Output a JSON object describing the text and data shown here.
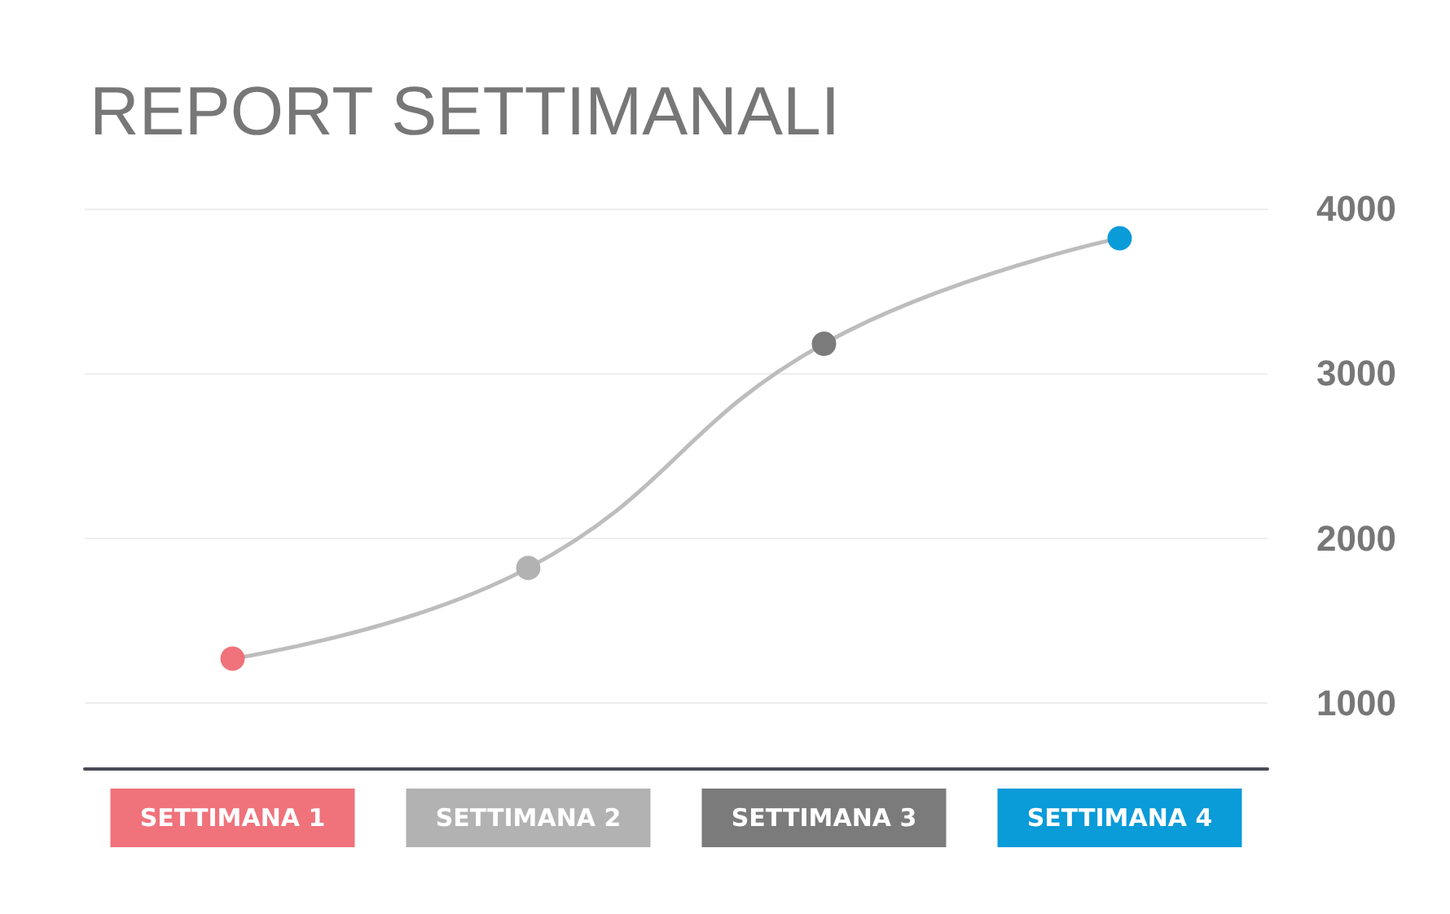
{
  "chart_data": {
    "type": "line",
    "title": "REPORT SETTIMANALI",
    "categories": [
      "SETTIMANA 1",
      "SETTIMANA 2",
      "SETTIMANA 3",
      "SETTIMANA 4"
    ],
    "series": [
      {
        "color": "#bdbdbd",
        "values": [
          1270,
          1820,
          3180,
          3820
        ]
      }
    ],
    "colors": [
      "#f0727b",
      "#b2b2b2",
      "#7b7b7b",
      "#0a9bd9"
    ],
    "ylim": [
      600,
      4000
    ],
    "yticks": [
      1000,
      2000,
      3000,
      4000
    ],
    "grid": "y",
    "marker": "circle",
    "line_style": "solid"
  }
}
